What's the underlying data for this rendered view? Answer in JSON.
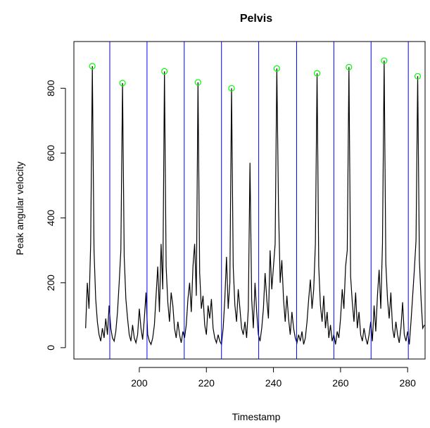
{
  "chart_data": {
    "type": "line",
    "title": "Pelvis",
    "xlabel": "Timestamp",
    "ylabel": "Peak angular velocity",
    "color": "#000000",
    "x": [
      184,
      184.5,
      185,
      185.5,
      186,
      186.5,
      187,
      187.5,
      188,
      188.5,
      189,
      189.5,
      190,
      190.5,
      191,
      191.5,
      192,
      192.5,
      193,
      193.5,
      194,
      194.5,
      195,
      195.5,
      196,
      196.5,
      197,
      197.5,
      198,
      198.5,
      199,
      199.5,
      200,
      200.5,
      201,
      201.5,
      202,
      202.5,
      203,
      203.5,
      204,
      204.5,
      205,
      205.5,
      206,
      206.5,
      207,
      207.5,
      208,
      208.5,
      209,
      209.5,
      210,
      210.5,
      211,
      211.5,
      212,
      212.5,
      213,
      213.5,
      214,
      214.5,
      215,
      215.5,
      216,
      216.5,
      217,
      217.5,
      218,
      218.5,
      219,
      219.5,
      220,
      220.5,
      221,
      221.5,
      222,
      222.5,
      223,
      223.5,
      224,
      224.5,
      225,
      225.5,
      226,
      226.5,
      227,
      227.5,
      228,
      228.5,
      229,
      229.5,
      230,
      230.5,
      231,
      231.5,
      232,
      232.5,
      233,
      233.5,
      234,
      234.5,
      235,
      235.5,
      236,
      236.5,
      237,
      237.5,
      238,
      238.5,
      239,
      239.5,
      240,
      240.5,
      241,
      241.5,
      242,
      242.5,
      243,
      243.5,
      244,
      244.5,
      245,
      245.5,
      246,
      246.5,
      247,
      247.5,
      248,
      248.5,
      249,
      249.5,
      250,
      250.5,
      251,
      251.5,
      252,
      252.5,
      253,
      253.5,
      254,
      254.5,
      255,
      255.5,
      256,
      256.5,
      257,
      257.5,
      258,
      258.5,
      259,
      259.5,
      260,
      260.5,
      261,
      261.5,
      262,
      262.5,
      263,
      263.5,
      264,
      264.5,
      265,
      265.5,
      266,
      266.5,
      267,
      267.5,
      268,
      268.5,
      269,
      269.5,
      270,
      270.5,
      271,
      271.5,
      272,
      272.5,
      273,
      273.5,
      274,
      274.5,
      275,
      275.5,
      276,
      276.5,
      277,
      277.5,
      278,
      278.5,
      279,
      279.5,
      280,
      280.5,
      281,
      281.5,
      282,
      282.5,
      283,
      283.5,
      284,
      284.5,
      285
    ],
    "values": [
      60,
      200,
      120,
      320,
      868,
      300,
      150,
      80,
      40,
      20,
      60,
      30,
      90,
      40,
      130,
      60,
      30,
      20,
      50,
      110,
      200,
      300,
      816,
      280,
      150,
      90,
      40,
      20,
      70,
      30,
      15,
      40,
      120,
      60,
      25,
      90,
      170,
      40,
      20,
      10,
      30,
      70,
      160,
      250,
      110,
      320,
      180,
      852,
      250,
      140,
      80,
      170,
      130,
      60,
      30,
      80,
      40,
      15,
      50,
      30,
      70,
      150,
      200,
      110,
      250,
      320,
      160,
      818,
      230,
      120,
      160,
      70,
      40,
      130,
      90,
      150,
      60,
      30,
      15,
      40,
      20,
      10,
      60,
      150,
      280,
      120,
      200,
      800,
      250,
      130,
      80,
      180,
      120,
      60,
      40,
      80,
      30,
      120,
      570,
      150,
      60,
      200,
      110,
      40,
      20,
      60,
      120,
      230,
      150,
      90,
      300,
      180,
      250,
      320,
      861,
      435,
      200,
      270,
      150,
      80,
      160,
      90,
      40,
      110,
      60,
      30,
      15,
      40,
      20,
      50,
      10,
      30,
      80,
      150,
      210,
      120,
      180,
      320,
      846,
      250,
      130,
      80,
      160,
      60,
      110,
      30,
      70,
      20,
      40,
      10,
      50,
      30,
      90,
      180,
      120,
      250,
      300,
      865,
      220,
      140,
      80,
      170,
      60,
      110,
      40,
      20,
      60,
      30,
      10,
      40,
      80,
      20,
      130,
      50,
      160,
      240,
      120,
      320,
      885,
      260,
      150,
      90,
      170,
      60,
      30,
      80,
      40,
      15,
      60,
      140,
      40,
      20,
      50,
      10,
      80,
      160,
      240,
      330,
      837,
      270,
      150,
      60,
      70
    ],
    "peaks": {
      "color": "#00ff00",
      "x": [
        186,
        195,
        207.5,
        217.5,
        227.5,
        241,
        253,
        262.5,
        273,
        283
      ],
      "values": [
        868,
        816,
        852,
        818,
        800,
        861,
        846,
        865,
        885,
        837
      ]
    },
    "vlines": {
      "color": "#0000ff",
      "values": [
        191.2,
        202.3,
        213.4,
        224.5,
        235.6,
        246.9,
        258,
        269.1,
        280.2
      ]
    },
    "xlim": [
      180.5,
      285.2
    ],
    "ylim": [
      -35,
      944
    ],
    "xticks": [
      200,
      220,
      240,
      260,
      280
    ],
    "yticks": [
      0,
      200,
      400,
      600,
      800
    ]
  }
}
